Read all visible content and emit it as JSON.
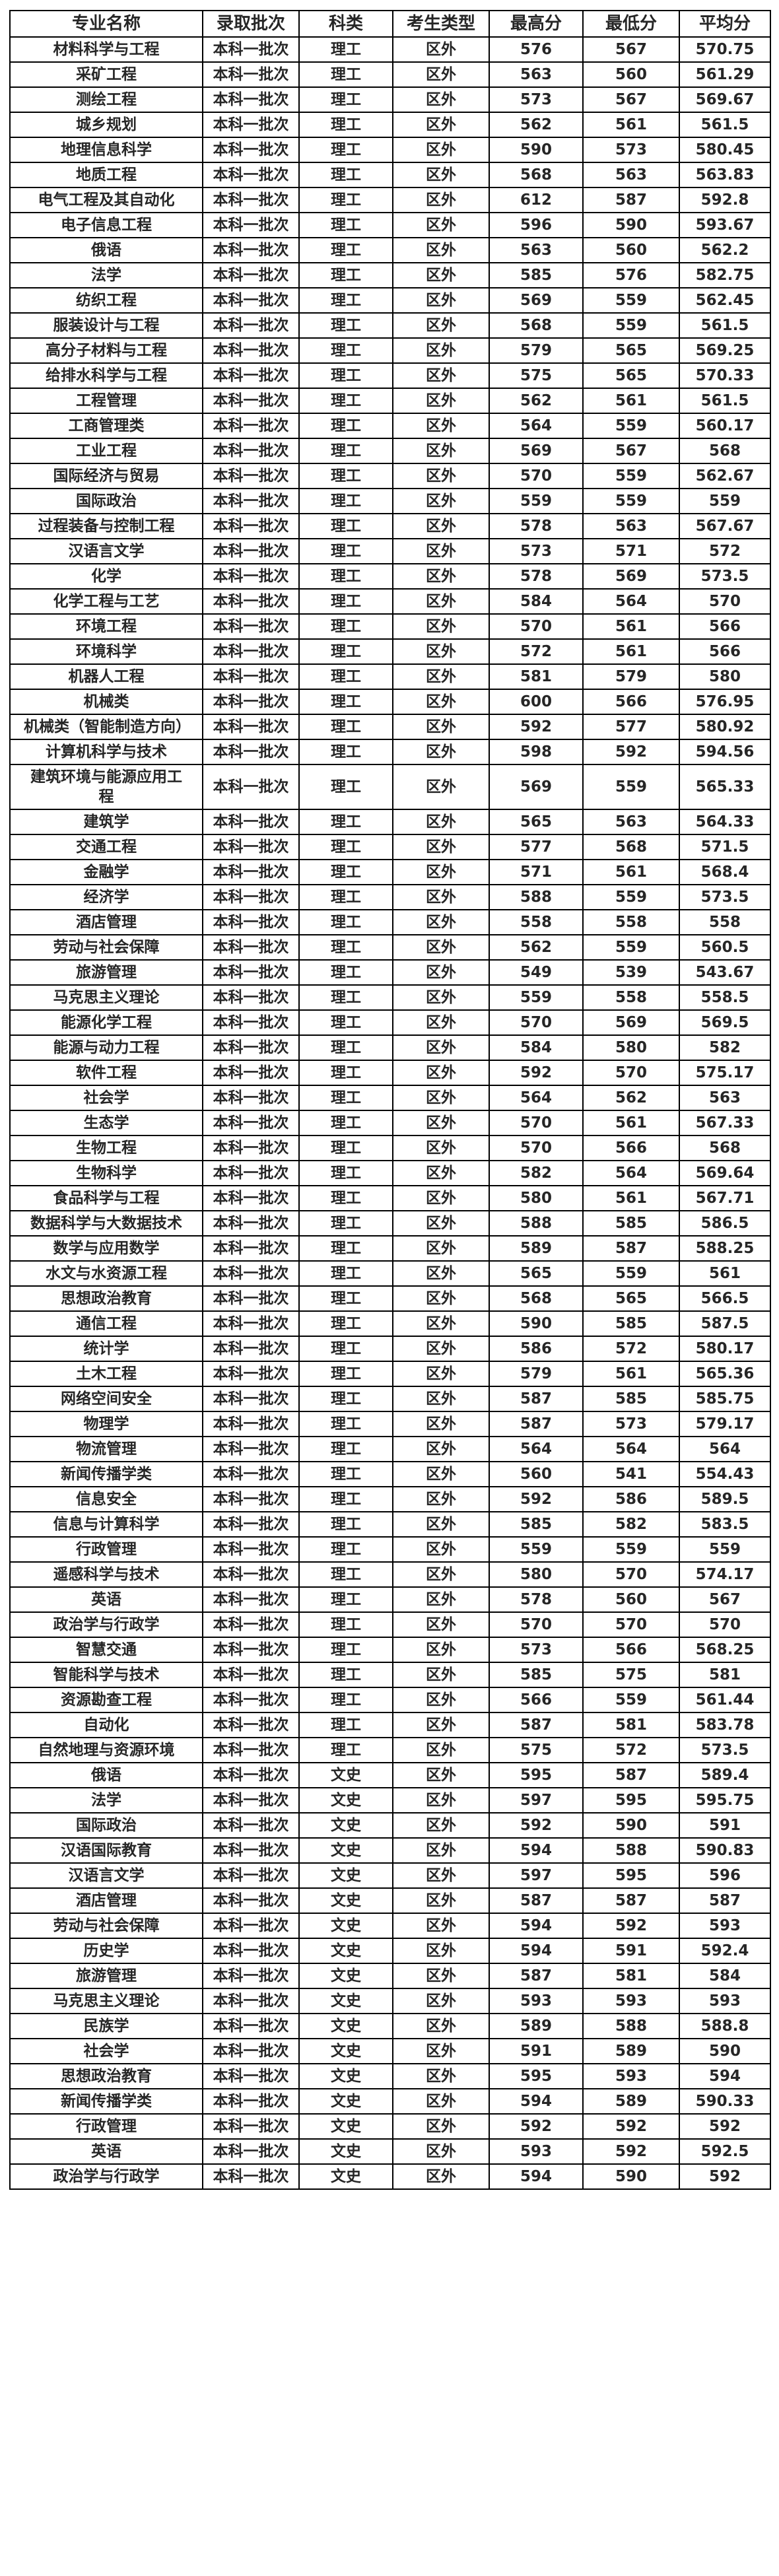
{
  "table": {
    "columns": [
      "专业名称",
      "录取批次",
      "科类",
      "考生类型",
      "最高分",
      "最低分",
      "平均分"
    ],
    "rows": [
      [
        "材料科学与工程",
        "本科一批次",
        "理工",
        "区外",
        "576",
        "567",
        "570.75"
      ],
      [
        "采矿工程",
        "本科一批次",
        "理工",
        "区外",
        "563",
        "560",
        "561.29"
      ],
      [
        "测绘工程",
        "本科一批次",
        "理工",
        "区外",
        "573",
        "567",
        "569.67"
      ],
      [
        "城乡规划",
        "本科一批次",
        "理工",
        "区外",
        "562",
        "561",
        "561.5"
      ],
      [
        "地理信息科学",
        "本科一批次",
        "理工",
        "区外",
        "590",
        "573",
        "580.45"
      ],
      [
        "地质工程",
        "本科一批次",
        "理工",
        "区外",
        "568",
        "563",
        "563.83"
      ],
      [
        "电气工程及其自动化",
        "本科一批次",
        "理工",
        "区外",
        "612",
        "587",
        "592.8"
      ],
      [
        "电子信息工程",
        "本科一批次",
        "理工",
        "区外",
        "596",
        "590",
        "593.67"
      ],
      [
        "俄语",
        "本科一批次",
        "理工",
        "区外",
        "563",
        "560",
        "562.2"
      ],
      [
        "法学",
        "本科一批次",
        "理工",
        "区外",
        "585",
        "576",
        "582.75"
      ],
      [
        "纺织工程",
        "本科一批次",
        "理工",
        "区外",
        "569",
        "559",
        "562.45"
      ],
      [
        "服装设计与工程",
        "本科一批次",
        "理工",
        "区外",
        "568",
        "559",
        "561.5"
      ],
      [
        "高分子材料与工程",
        "本科一批次",
        "理工",
        "区外",
        "579",
        "565",
        "569.25"
      ],
      [
        "给排水科学与工程",
        "本科一批次",
        "理工",
        "区外",
        "575",
        "565",
        "570.33"
      ],
      [
        "工程管理",
        "本科一批次",
        "理工",
        "区外",
        "562",
        "561",
        "561.5"
      ],
      [
        "工商管理类",
        "本科一批次",
        "理工",
        "区外",
        "564",
        "559",
        "560.17"
      ],
      [
        "工业工程",
        "本科一批次",
        "理工",
        "区外",
        "569",
        "567",
        "568"
      ],
      [
        "国际经济与贸易",
        "本科一批次",
        "理工",
        "区外",
        "570",
        "559",
        "562.67"
      ],
      [
        "国际政治",
        "本科一批次",
        "理工",
        "区外",
        "559",
        "559",
        "559"
      ],
      [
        "过程装备与控制工程",
        "本科一批次",
        "理工",
        "区外",
        "578",
        "563",
        "567.67"
      ],
      [
        "汉语言文学",
        "本科一批次",
        "理工",
        "区外",
        "573",
        "571",
        "572"
      ],
      [
        "化学",
        "本科一批次",
        "理工",
        "区外",
        "578",
        "569",
        "573.5"
      ],
      [
        "化学工程与工艺",
        "本科一批次",
        "理工",
        "区外",
        "584",
        "564",
        "570"
      ],
      [
        "环境工程",
        "本科一批次",
        "理工",
        "区外",
        "570",
        "561",
        "566"
      ],
      [
        "环境科学",
        "本科一批次",
        "理工",
        "区外",
        "572",
        "561",
        "566"
      ],
      [
        "机器人工程",
        "本科一批次",
        "理工",
        "区外",
        "581",
        "579",
        "580"
      ],
      [
        "机械类",
        "本科一批次",
        "理工",
        "区外",
        "600",
        "566",
        "576.95"
      ],
      [
        "机械类（智能制造方向）",
        "本科一批次",
        "理工",
        "区外",
        "592",
        "577",
        "580.92"
      ],
      [
        "计算机科学与技术",
        "本科一批次",
        "理工",
        "区外",
        "598",
        "592",
        "594.56"
      ],
      [
        "建筑环境与能源应用工程",
        "本科一批次",
        "理工",
        "区外",
        "569",
        "559",
        "565.33"
      ],
      [
        "建筑学",
        "本科一批次",
        "理工",
        "区外",
        "565",
        "563",
        "564.33"
      ],
      [
        "交通工程",
        "本科一批次",
        "理工",
        "区外",
        "577",
        "568",
        "571.5"
      ],
      [
        "金融学",
        "本科一批次",
        "理工",
        "区外",
        "571",
        "561",
        "568.4"
      ],
      [
        "经济学",
        "本科一批次",
        "理工",
        "区外",
        "588",
        "559",
        "573.5"
      ],
      [
        "酒店管理",
        "本科一批次",
        "理工",
        "区外",
        "558",
        "558",
        "558"
      ],
      [
        "劳动与社会保障",
        "本科一批次",
        "理工",
        "区外",
        "562",
        "559",
        "560.5"
      ],
      [
        "旅游管理",
        "本科一批次",
        "理工",
        "区外",
        "549",
        "539",
        "543.67"
      ],
      [
        "马克思主义理论",
        "本科一批次",
        "理工",
        "区外",
        "559",
        "558",
        "558.5"
      ],
      [
        "能源化学工程",
        "本科一批次",
        "理工",
        "区外",
        "570",
        "569",
        "569.5"
      ],
      [
        "能源与动力工程",
        "本科一批次",
        "理工",
        "区外",
        "584",
        "580",
        "582"
      ],
      [
        "软件工程",
        "本科一批次",
        "理工",
        "区外",
        "592",
        "570",
        "575.17"
      ],
      [
        "社会学",
        "本科一批次",
        "理工",
        "区外",
        "564",
        "562",
        "563"
      ],
      [
        "生态学",
        "本科一批次",
        "理工",
        "区外",
        "570",
        "561",
        "567.33"
      ],
      [
        "生物工程",
        "本科一批次",
        "理工",
        "区外",
        "570",
        "566",
        "568"
      ],
      [
        "生物科学",
        "本科一批次",
        "理工",
        "区外",
        "582",
        "564",
        "569.64"
      ],
      [
        "食品科学与工程",
        "本科一批次",
        "理工",
        "区外",
        "580",
        "561",
        "567.71"
      ],
      [
        "数据科学与大数据技术",
        "本科一批次",
        "理工",
        "区外",
        "588",
        "585",
        "586.5"
      ],
      [
        "数学与应用数学",
        "本科一批次",
        "理工",
        "区外",
        "589",
        "587",
        "588.25"
      ],
      [
        "水文与水资源工程",
        "本科一批次",
        "理工",
        "区外",
        "565",
        "559",
        "561"
      ],
      [
        "思想政治教育",
        "本科一批次",
        "理工",
        "区外",
        "568",
        "565",
        "566.5"
      ],
      [
        "通信工程",
        "本科一批次",
        "理工",
        "区外",
        "590",
        "585",
        "587.5"
      ],
      [
        "统计学",
        "本科一批次",
        "理工",
        "区外",
        "586",
        "572",
        "580.17"
      ],
      [
        "土木工程",
        "本科一批次",
        "理工",
        "区外",
        "579",
        "561",
        "565.36"
      ],
      [
        "网络空间安全",
        "本科一批次",
        "理工",
        "区外",
        "587",
        "585",
        "585.75"
      ],
      [
        "物理学",
        "本科一批次",
        "理工",
        "区外",
        "587",
        "573",
        "579.17"
      ],
      [
        "物流管理",
        "本科一批次",
        "理工",
        "区外",
        "564",
        "564",
        "564"
      ],
      [
        "新闻传播学类",
        "本科一批次",
        "理工",
        "区外",
        "560",
        "541",
        "554.43"
      ],
      [
        "信息安全",
        "本科一批次",
        "理工",
        "区外",
        "592",
        "586",
        "589.5"
      ],
      [
        "信息与计算科学",
        "本科一批次",
        "理工",
        "区外",
        "585",
        "582",
        "583.5"
      ],
      [
        "行政管理",
        "本科一批次",
        "理工",
        "区外",
        "559",
        "559",
        "559"
      ],
      [
        "遥感科学与技术",
        "本科一批次",
        "理工",
        "区外",
        "580",
        "570",
        "574.17"
      ],
      [
        "英语",
        "本科一批次",
        "理工",
        "区外",
        "578",
        "560",
        "567"
      ],
      [
        "政治学与行政学",
        "本科一批次",
        "理工",
        "区外",
        "570",
        "570",
        "570"
      ],
      [
        "智慧交通",
        "本科一批次",
        "理工",
        "区外",
        "573",
        "566",
        "568.25"
      ],
      [
        "智能科学与技术",
        "本科一批次",
        "理工",
        "区外",
        "585",
        "575",
        "581"
      ],
      [
        "资源勘查工程",
        "本科一批次",
        "理工",
        "区外",
        "566",
        "559",
        "561.44"
      ],
      [
        "自动化",
        "本科一批次",
        "理工",
        "区外",
        "587",
        "581",
        "583.78"
      ],
      [
        "自然地理与资源环境",
        "本科一批次",
        "理工",
        "区外",
        "575",
        "572",
        "573.5"
      ],
      [
        "俄语",
        "本科一批次",
        "文史",
        "区外",
        "595",
        "587",
        "589.4"
      ],
      [
        "法学",
        "本科一批次",
        "文史",
        "区外",
        "597",
        "595",
        "595.75"
      ],
      [
        "国际政治",
        "本科一批次",
        "文史",
        "区外",
        "592",
        "590",
        "591"
      ],
      [
        "汉语国际教育",
        "本科一批次",
        "文史",
        "区外",
        "594",
        "588",
        "590.83"
      ],
      [
        "汉语言文学",
        "本科一批次",
        "文史",
        "区外",
        "597",
        "595",
        "596"
      ],
      [
        "酒店管理",
        "本科一批次",
        "文史",
        "区外",
        "587",
        "587",
        "587"
      ],
      [
        "劳动与社会保障",
        "本科一批次",
        "文史",
        "区外",
        "594",
        "592",
        "593"
      ],
      [
        "历史学",
        "本科一批次",
        "文史",
        "区外",
        "594",
        "591",
        "592.4"
      ],
      [
        "旅游管理",
        "本科一批次",
        "文史",
        "区外",
        "587",
        "581",
        "584"
      ],
      [
        "马克思主义理论",
        "本科一批次",
        "文史",
        "区外",
        "593",
        "593",
        "593"
      ],
      [
        "民族学",
        "本科一批次",
        "文史",
        "区外",
        "589",
        "588",
        "588.8"
      ],
      [
        "社会学",
        "本科一批次",
        "文史",
        "区外",
        "591",
        "589",
        "590"
      ],
      [
        "思想政治教育",
        "本科一批次",
        "文史",
        "区外",
        "595",
        "593",
        "594"
      ],
      [
        "新闻传播学类",
        "本科一批次",
        "文史",
        "区外",
        "594",
        "589",
        "590.33"
      ],
      [
        "行政管理",
        "本科一批次",
        "文史",
        "区外",
        "592",
        "592",
        "592"
      ],
      [
        "英语",
        "本科一批次",
        "文史",
        "区外",
        "593",
        "592",
        "592.5"
      ],
      [
        "政治学与行政学",
        "本科一批次",
        "文史",
        "区外",
        "594",
        "590",
        "592"
      ]
    ]
  }
}
